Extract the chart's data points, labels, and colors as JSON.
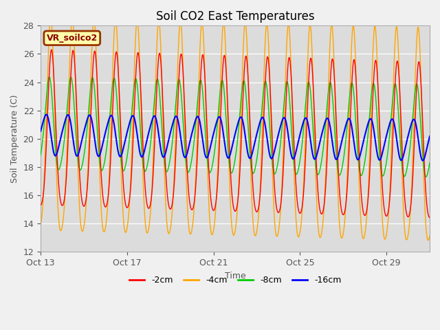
{
  "title": "Soil CO2 East Temperatures",
  "xlabel": "Time",
  "ylabel": "Soil Temperature (C)",
  "ylim": [
    12,
    28
  ],
  "yticks": [
    12,
    14,
    16,
    18,
    20,
    22,
    24,
    26,
    28
  ],
  "xtick_labels": [
    "Oct 13",
    "Oct 17",
    "Oct 21",
    "Oct 25",
    "Oct 29"
  ],
  "xtick_positions": [
    0,
    4,
    8,
    12,
    16
  ],
  "n_days": 18,
  "n_points": 3600,
  "line_colors": {
    "-2cm": "#ff0000",
    "-4cm": "#ffa500",
    "-8cm": "#00cc00",
    "-16cm": "#0000ff"
  },
  "legend_label": "VR_soilco2",
  "legend_bg": "#ffffaa",
  "legend_border": "#993300",
  "axes_bg": "#dcdcdc",
  "fig_bg": "#f0f0f0",
  "params": {
    "mean_2cm": 20.0,
    "amp_2cm": 5.5,
    "phase_2cm": -1.57,
    "mean_4cm": 20.0,
    "amp_4cm": 7.5,
    "phase_4cm": -1.3,
    "mean_8cm": 20.8,
    "amp_8cm": 3.2,
    "phase_8cm": -0.8,
    "mean_16cm": 20.3,
    "amp_16cm": 1.4,
    "phase_16cm": 0.2,
    "trend_2cm": -0.05,
    "trend_4cm": -0.04,
    "trend_8cm": -0.03,
    "trend_16cm": -0.02
  }
}
